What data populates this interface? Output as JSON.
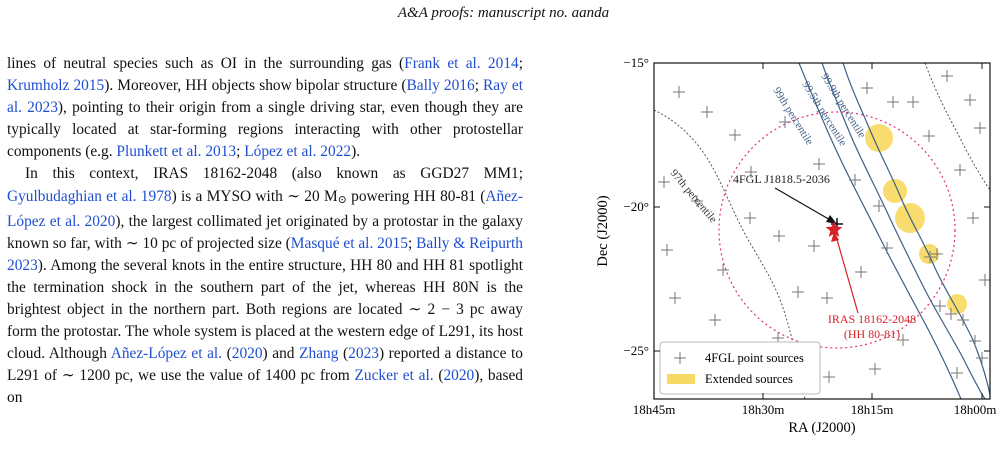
{
  "header": "A&A proofs: manuscript no. aanda",
  "paragraph1": [
    {
      "t": "lines of neutral species such as OI in the surrounding gas ("
    },
    {
      "t": "Frank et al. 2014",
      "c": 1
    },
    {
      "t": "; "
    },
    {
      "t": "Krumholz 2015",
      "c": 1
    },
    {
      "t": "). Moreover, HH objects show bipolar structure ("
    },
    {
      "t": "Bally 2016",
      "c": 1
    },
    {
      "t": "; "
    },
    {
      "t": "Ray et al. 2023",
      "c": 1
    },
    {
      "t": "), pointing to their origin from a single driving star, even though they are typically located at star-forming regions interacting with other protostellar components (e.g. "
    },
    {
      "t": "Plunkett et al. 2013",
      "c": 1
    },
    {
      "t": "; "
    },
    {
      "t": "López et al. 2022",
      "c": 1
    },
    {
      "t": ")."
    }
  ],
  "paragraph2": [
    {
      "t": "In this context, IRAS 18162-2048 (also known as GGD27 MM1; "
    },
    {
      "t": "Gyulbudaghian et al. 1978",
      "c": 1
    },
    {
      "t": ") is a MYSO with ∼ 20 M"
    },
    {
      "t": "⊙",
      "sub": 1
    },
    {
      "t": " powering HH 80-81 ("
    },
    {
      "t": "Añez-López et al. 2020",
      "c": 1
    },
    {
      "t": "), the largest collimated jet originated by a protostar in the galaxy known so far, with ∼ 10 pc of projected size ("
    },
    {
      "t": "Masqué et al. 2015",
      "c": 1
    },
    {
      "t": "; "
    },
    {
      "t": "Bally & Reipurth 2023",
      "c": 1
    },
    {
      "t": "). Among the several knots in the entire structure, HH 80 and HH 81 spotlight the termination shock in the southern part of the jet, whereas HH 80N is the brightest object in the northern part. Both regions are located ∼ 2 − 3 pc away form the protostar. The whole system is placed at the western edge of L291, its host cloud. Although "
    },
    {
      "t": "Añez-López et al.",
      "c": 1
    },
    {
      "t": " ("
    },
    {
      "t": "2020",
      "c": 1
    },
    {
      "t": ") and "
    },
    {
      "t": "Zhang",
      "c": 1
    },
    {
      "t": " ("
    },
    {
      "t": "2023",
      "c": 1
    },
    {
      "t": ") reported a distance to L291 of ∼ 1200 pc, we use the value of 1400 pc from "
    },
    {
      "t": "Zucker et al.",
      "c": 1
    },
    {
      "t": " ("
    },
    {
      "t": "2020",
      "c": 1
    },
    {
      "t": "), based on"
    }
  ],
  "figure": {
    "xlabel": "RA (J2000)",
    "ylabel": "Dec (J2000)",
    "xticks": [
      "18h45m",
      "18h30m",
      "18h15m",
      "18h00m"
    ],
    "yticks": [
      "−15°",
      "−20°",
      "−25°"
    ],
    "contour_labels": [
      "99.9th percentile",
      "99.5th percentile",
      "99th percentile",
      "97th percentile"
    ],
    "source_label": "4FGL J1818.5-2036",
    "iras_label_1": "IRAS 18162-2048",
    "iras_label_2": "(HH 80-81)",
    "legend_point": "4FGL point sources",
    "legend_ext": "Extended sources",
    "colors": {
      "contour": "#3d5f84",
      "circle": "#e0307a",
      "extended": "#f6d44a",
      "iras": "#d9202a"
    }
  }
}
